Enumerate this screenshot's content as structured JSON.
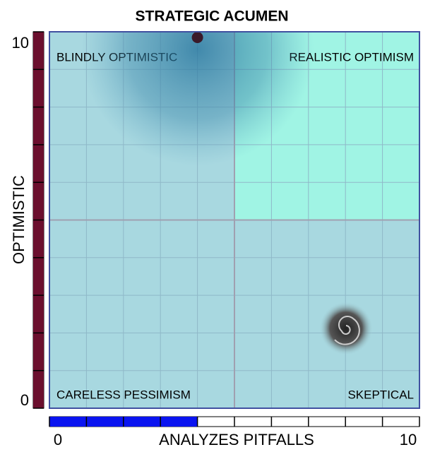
{
  "chart_data": {
    "type": "scatter",
    "title": "STRATEGIC ACUMEN",
    "x_label": "ANALYZES PITFALLS",
    "y_label": "OPTIMISTIC",
    "quadrants": {
      "top_left": "BLINDLY OPTIMISTIC",
      "top_right": "REALISTIC OPTIMISM",
      "bottom_left": "CARELESS PESSIMISM",
      "bottom_right": "SKEPTICAL"
    },
    "x": [
      4
    ],
    "values": [
      10
    ],
    "color": "#3a1a2a",
    "xlim": [
      0,
      10
    ],
    "ylim": [
      0,
      10
    ],
    "xticks": [
      0,
      10
    ],
    "yticks": [
      0,
      10
    ],
    "grid": true
  }
}
